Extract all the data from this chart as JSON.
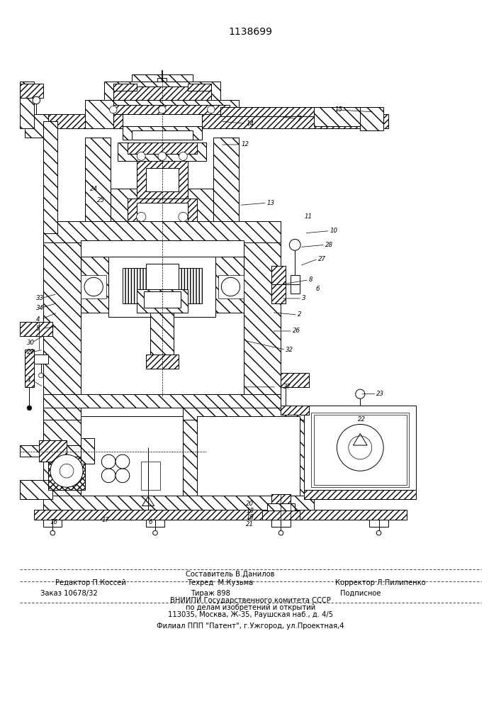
{
  "patent_number": "1138699",
  "bg_color": "#ffffff",
  "fig_width": 7.07,
  "fig_height": 10.0,
  "dpi": 100,
  "footer": {
    "r1c": "Составитель В.Данилов",
    "r2l": "Редактор П.Коссей",
    "r2c": "Техред  М.Кузьма",
    "r2r": "Корректор Л.Пилипенко",
    "r3l": "Заказ 10678/32",
    "r3c": "Тираж 898",
    "r3r": "Подписное",
    "r4": "ВНИИПИ Государственного комитета СССР",
    "r5": "по делам изобретений и открытий",
    "r6": "113035, Москва, Ж-35, Раушская наб., д. 4/5",
    "r7": "Филиал ППП \"Патент\", г.Ужгород, ул.Проектная,4"
  }
}
